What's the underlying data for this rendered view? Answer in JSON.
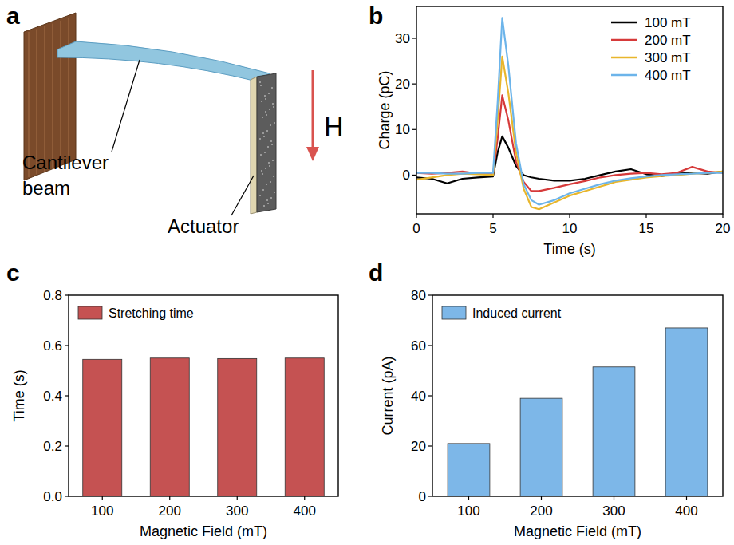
{
  "diagram": {
    "panel": "a",
    "labels": [
      "Cantilever beam",
      "Actuator"
    ],
    "field_label": "H"
  },
  "chart_data": [
    {
      "type": "line",
      "panel": "b",
      "xlabel": "Time (s)",
      "ylabel": "Charge (pC)",
      "x": [
        0,
        1,
        2,
        3,
        4,
        5,
        5.3,
        5.6,
        6,
        6.5,
        7,
        7.5,
        8,
        9,
        10,
        11,
        12,
        13,
        14,
        15,
        16,
        17,
        18,
        19,
        20
      ],
      "series": [
        {
          "name": "100 mT",
          "color": "#000000",
          "values": [
            -0.5,
            -0.8,
            -1.8,
            -0.8,
            -0.5,
            -0.3,
            5,
            8.5,
            6,
            2,
            0,
            -0.5,
            -0.8,
            -1.2,
            -1.2,
            -0.8,
            0,
            0.8,
            1.3,
            0.2,
            -0.2,
            0.3,
            0.5,
            0.3,
            0.8
          ]
        },
        {
          "name": "200 mT",
          "color": "#d63a3a",
          "values": [
            0.5,
            0.3,
            0.5,
            0.8,
            0.3,
            0.2,
            8,
            17.5,
            12,
            3,
            -1.5,
            -3.5,
            -3.5,
            -2.8,
            -2,
            -1.3,
            -0.5,
            0,
            0.3,
            0.5,
            0.2,
            0.5,
            1.8,
            0.8,
            0.5
          ]
        },
        {
          "name": "300 mT",
          "color": "#e8b62c",
          "values": [
            -1,
            -0.5,
            0,
            0.3,
            0.2,
            0,
            12,
            26,
            18,
            5,
            -3,
            -7,
            -7.5,
            -6,
            -4.5,
            -3.5,
            -2.5,
            -1.5,
            -1,
            -0.5,
            -0.2,
            0,
            0.3,
            0.5,
            0.8
          ]
        },
        {
          "name": "400 mT",
          "color": "#6cb4ea",
          "values": [
            0.5,
            0.5,
            0.3,
            0.3,
            0.5,
            0.5,
            16,
            34.5,
            24,
            7,
            -2,
            -5.5,
            -6.5,
            -5.5,
            -4,
            -3,
            -2,
            -1.2,
            -0.7,
            -0.3,
            0,
            0.2,
            0.3,
            0.5,
            0.5
          ]
        }
      ],
      "xlim": [
        0,
        20
      ],
      "xticks": [
        0,
        5,
        10,
        15,
        20
      ],
      "ylim": [
        -8.5,
        37
      ],
      "yticks": [
        0,
        10,
        20,
        30
      ],
      "legend": "upper right"
    },
    {
      "type": "bar",
      "panel": "c",
      "xlabel": "Magnetic Field (mT)",
      "ylabel": "Time (s)",
      "categories": [
        "100",
        "200",
        "300",
        "400"
      ],
      "series": [
        {
          "name": "Stretching time",
          "color": "#c55252",
          "values": [
            0.545,
            0.55,
            0.548,
            0.55
          ]
        }
      ],
      "ylim": [
        0,
        0.8
      ],
      "yticks": [
        {
          "value": 0,
          "label": "0.0"
        },
        0.2,
        0.4,
        0.6,
        0.8
      ],
      "legend": "upper left"
    },
    {
      "type": "bar",
      "panel": "d",
      "xlabel": "Magnetic Field (mT)",
      "ylabel": "Current (pA)",
      "categories": [
        "100",
        "200",
        "300",
        "400"
      ],
      "series": [
        {
          "name": "Induced current",
          "color": "#7db7e8",
          "values": [
            21,
            39,
            51.5,
            67
          ]
        }
      ],
      "ylim": [
        0,
        80
      ],
      "yticks": [
        0,
        20,
        40,
        60,
        80
      ],
      "legend": "upper left"
    }
  ]
}
